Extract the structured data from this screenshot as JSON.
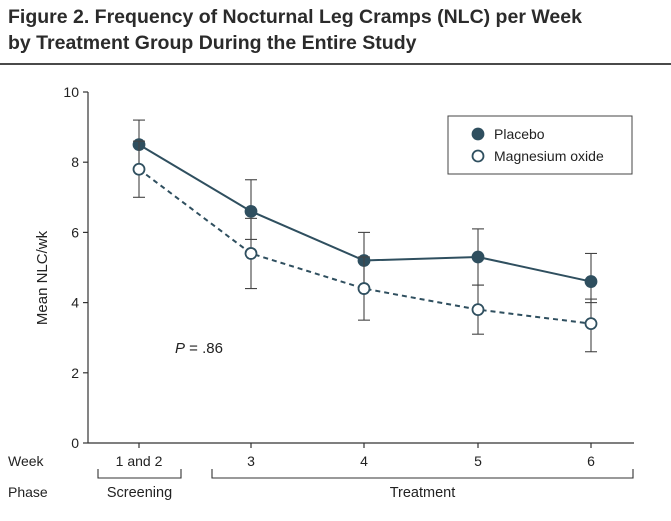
{
  "figure": {
    "title_line1": "Figure 2. Frequency of Nocturnal Leg Cramps (NLC) per Week",
    "title_line2": "by Treatment Group During the Entire Study"
  },
  "chart_data": {
    "type": "line",
    "title": "Frequency of Nocturnal Leg Cramps (NLC) per Week by Treatment Group During the Entire Study",
    "ylabel": "Mean NLC/wk",
    "xlabel": "Week",
    "ylim": [
      0,
      10
    ],
    "yticks": [
      0,
      2,
      4,
      6,
      8,
      10
    ],
    "categories": [
      "1 and 2",
      "3",
      "4",
      "5",
      "6"
    ],
    "row_labels": {
      "week": "Week",
      "phase": "Phase"
    },
    "phases": [
      {
        "label": "Screening",
        "from": 0,
        "to": 0
      },
      {
        "label": "Treatment",
        "from": 1,
        "to": 4
      }
    ],
    "series": [
      {
        "name": "Placebo",
        "marker": "filled-circle",
        "line": "solid",
        "color": "#2f4f5f",
        "values": [
          8.5,
          6.6,
          5.2,
          5.3,
          4.6
        ],
        "error_low": [
          7.8,
          5.8,
          4.4,
          4.5,
          4.0
        ],
        "error_high": [
          9.2,
          7.5,
          6.0,
          6.1,
          5.4
        ]
      },
      {
        "name": "Magnesium oxide",
        "marker": "open-circle",
        "line": "dashed",
        "color": "#2f4f5f",
        "values": [
          7.8,
          5.4,
          4.4,
          3.8,
          3.4
        ],
        "error_low": [
          7.0,
          4.4,
          3.5,
          3.1,
          2.6
        ],
        "error_high": [
          8.6,
          6.4,
          5.3,
          4.5,
          4.1
        ]
      }
    ],
    "annotation": {
      "prefix": "P",
      "text": " = .86"
    }
  }
}
